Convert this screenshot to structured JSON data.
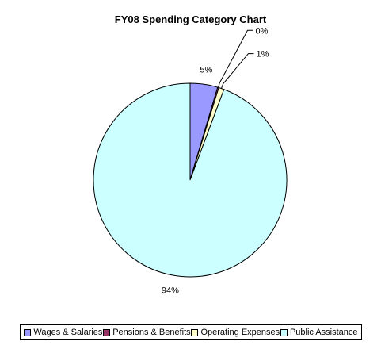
{
  "chart_data": {
    "type": "pie",
    "title": "FY08 Spending Category Chart",
    "categories": [
      "Wages & Salaries",
      "Pensions & Benefits",
      "Operating Expenses",
      "Public Assistance"
    ],
    "values": [
      4.6,
      0.2,
      0.9,
      94.3
    ],
    "labels": [
      "5%",
      "0%",
      "1%",
      "94%"
    ],
    "colors": [
      "#9999FF",
      "#993366",
      "#FFFFCC",
      "#CCFFFF"
    ],
    "legend_position": "bottom"
  }
}
